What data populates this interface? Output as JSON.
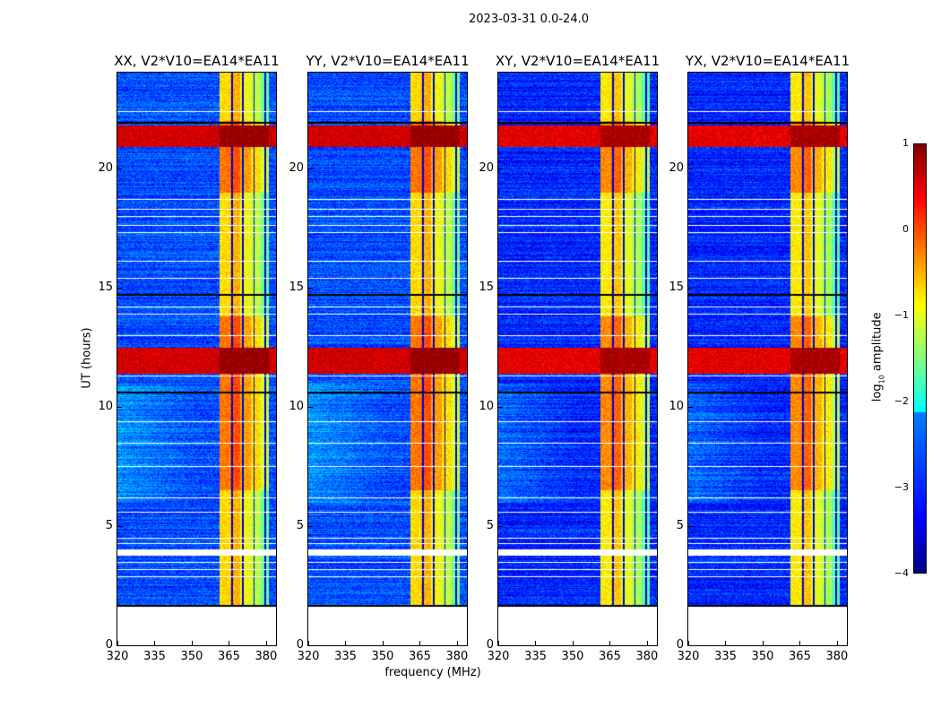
{
  "suptitle": "2023-03-31 0.0-24.0",
  "chart_data": [
    {
      "type": "heatmap",
      "title": "XX, V2*V10=EA14*EA11",
      "ylabel": "UT (hours)",
      "xlabel": "",
      "xlim": [
        320,
        384
      ],
      "ylim": [
        0,
        24
      ],
      "xticks": [
        "320",
        "335",
        "350",
        "365",
        "380"
      ],
      "yticks": [
        "0",
        "5",
        "10",
        "15",
        "20"
      ],
      "seed": 1,
      "base_level": -3.0,
      "rfi_band_mhz": [
        361,
        381
      ],
      "rfi_level": -0.8,
      "events_hours": [
        [
          11.4,
          12.5
        ],
        [
          20.9,
          21.8
        ]
      ],
      "event_level": 0.6,
      "no_data_hours": [
        0,
        1.65
      ]
    },
    {
      "type": "heatmap",
      "title": "YY, V2*V10=EA14*EA11",
      "ylabel": "",
      "xlabel": "frequency (MHz)",
      "xlim": [
        320,
        384
      ],
      "ylim": [
        0,
        24
      ],
      "xticks": [
        "320",
        "335",
        "350",
        "365",
        "380"
      ],
      "yticks": [
        "0",
        "5",
        "10",
        "15",
        "20"
      ],
      "seed": 2,
      "base_level": -3.0,
      "rfi_band_mhz": [
        361,
        381
      ],
      "rfi_level": -0.8,
      "events_hours": [
        [
          11.4,
          12.5
        ],
        [
          20.9,
          21.8
        ]
      ],
      "event_level": 0.6,
      "no_data_hours": [
        0,
        1.65
      ]
    },
    {
      "type": "heatmap",
      "title": "XY, V2*V10=EA14*EA11",
      "ylabel": "",
      "xlabel": "",
      "xlim": [
        320,
        384
      ],
      "ylim": [
        0,
        24
      ],
      "xticks": [
        "320",
        "335",
        "350",
        "365",
        "380"
      ],
      "yticks": [
        "0",
        "5",
        "10",
        "15",
        "20"
      ],
      "seed": 3,
      "base_level": -3.2,
      "rfi_band_mhz": [
        361,
        381
      ],
      "rfi_level": -0.9,
      "events_hours": [
        [
          11.4,
          12.5
        ],
        [
          20.9,
          21.8
        ]
      ],
      "event_level": 0.5,
      "no_data_hours": [
        0,
        1.65
      ]
    },
    {
      "type": "heatmap",
      "title": "YX, V2*V10=EA14*EA11",
      "ylabel": "",
      "xlabel": "",
      "xlim": [
        320,
        384
      ],
      "ylim": [
        0,
        24
      ],
      "xticks": [
        "320",
        "335",
        "350",
        "365",
        "380"
      ],
      "yticks": [
        "0",
        "5",
        "10",
        "15",
        "20"
      ],
      "seed": 4,
      "base_level": -3.2,
      "rfi_band_mhz": [
        361,
        381
      ],
      "rfi_level": -0.9,
      "events_hours": [
        [
          11.4,
          12.5
        ],
        [
          20.9,
          21.8
        ]
      ],
      "event_level": 0.5,
      "no_data_hours": [
        0,
        1.65
      ]
    }
  ],
  "flag_hours": [
    2.9,
    3.2,
    3.5,
    3.9,
    4.3,
    4.5,
    5.6,
    6.2,
    7.5,
    8.5,
    9.4,
    11.3,
    13.0,
    13.9,
    14.2,
    15.4,
    16.1,
    17.3,
    17.6,
    18.0,
    18.3,
    18.7,
    22.4
  ],
  "colorbar": {
    "label": "log10 amplitude",
    "label_main": "log",
    "label_sub": "10",
    "label_rest": " amplitude",
    "range": [
      -4,
      1
    ],
    "ticks": [
      "1",
      "0",
      "−1",
      "−2",
      "−3",
      "−4"
    ]
  }
}
